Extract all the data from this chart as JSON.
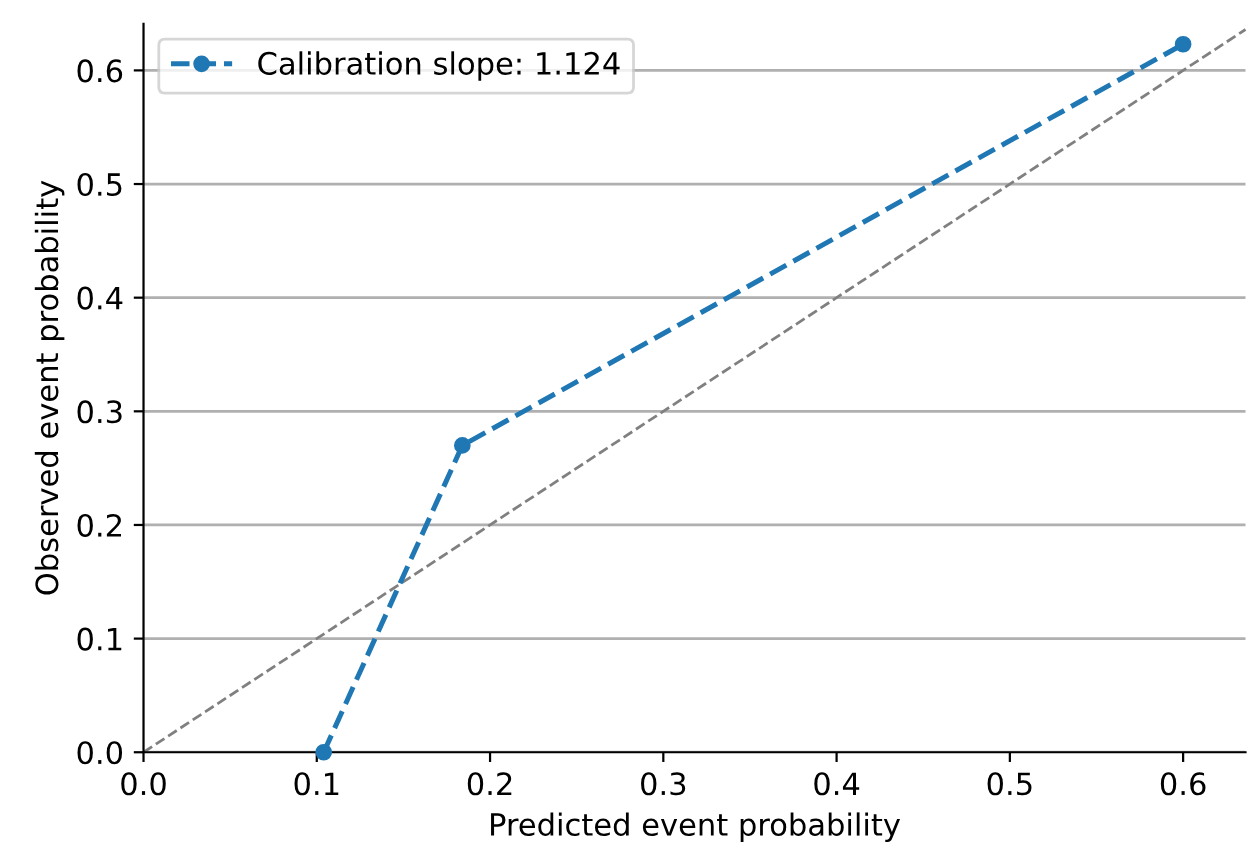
{
  "chart_data": {
    "type": "line",
    "xlabel": "Predicted event probability",
    "ylabel": "Observed event probability",
    "series": [
      {
        "name": "Calibration slope: 1.124",
        "color": "#1f77b4",
        "x": [
          0.104,
          0.184,
          0.6
        ],
        "values": [
          0.0,
          0.27,
          0.623
        ],
        "marker": "circle",
        "line_style": "dashed"
      },
      {
        "color": "#808080",
        "x": [
          0,
          0.636
        ],
        "values": [
          0,
          0.636
        ],
        "marker": "none",
        "line_style": "dashed"
      }
    ],
    "xlim": [
      0,
      0.636
    ],
    "ylim": [
      0,
      0.641
    ],
    "xticks": [
      {
        "value": 0,
        "label": "0.0"
      },
      0.1,
      0.2,
      0.3,
      0.4,
      0.5,
      0.6
    ],
    "yticks": [
      {
        "value": 0,
        "label": "0.0"
      },
      0.1,
      0.2,
      0.3,
      0.4,
      0.5,
      0.6
    ],
    "grid": "y",
    "legend": "top left"
  }
}
